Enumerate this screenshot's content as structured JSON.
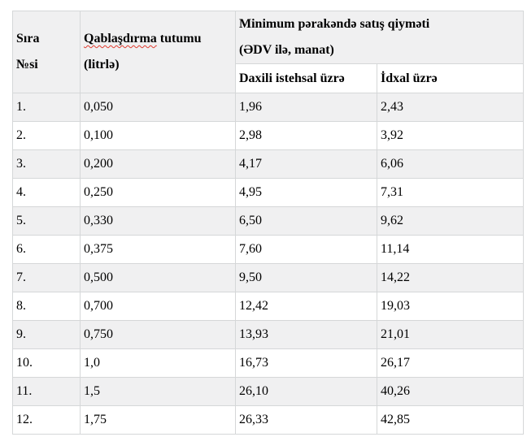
{
  "table": {
    "headers": {
      "sira": {
        "line1": "Sıra",
        "line2": "№si"
      },
      "capacity": {
        "misspelled_word": "Qablaşdırma",
        "word_rest": "tutumu",
        "line2": "(litrlə)"
      },
      "price_group": {
        "line1": "Minimum pərakəndə satış qiyməti",
        "line2": "(ƏDV ilə, manat)"
      },
      "sub_domestic": "Daxili istehsal üzrə",
      "sub_import": "İdxal üzrə"
    },
    "rows": [
      {
        "no": "1.",
        "capacity": "0,050",
        "domestic": "1,96",
        "import": "2,43"
      },
      {
        "no": "2.",
        "capacity": "0,100",
        "domestic": "2,98",
        "import": "3,92"
      },
      {
        "no": "3.",
        "capacity": "0,200",
        "domestic": "4,17",
        "import": "6,06"
      },
      {
        "no": "4.",
        "capacity": "0,250",
        "domestic": "4,95",
        "import": "7,31"
      },
      {
        "no": "5.",
        "capacity": "0,330",
        "domestic": "6,50",
        "import": "9,62"
      },
      {
        "no": "6.",
        "capacity": "0,375",
        "domestic": "7,60",
        "import": "11,14"
      },
      {
        "no": "7.",
        "capacity": "0,500",
        "domestic": "9,50",
        "import": "14,22"
      },
      {
        "no": "8.",
        "capacity": "0,700",
        "domestic": "12,42",
        "import": "19,03"
      },
      {
        "no": "9.",
        "capacity": "0,750",
        "domestic": "13,93",
        "import": "21,01"
      },
      {
        "no": "10.",
        "capacity": "1,0",
        "domestic": "16,73",
        "import": "26,17"
      },
      {
        "no": "11.",
        "capacity": "1,5",
        "domestic": "26,10",
        "import": "40,26"
      },
      {
        "no": "12.",
        "capacity": "1,75",
        "domestic": "26,33",
        "import": "42,85"
      }
    ]
  },
  "colors": {
    "row_shade": "#f0f0f1",
    "border": "#d5d7d8",
    "spellcheck_underline": "#e03a2f",
    "text": "#000000",
    "background": "#ffffff"
  }
}
